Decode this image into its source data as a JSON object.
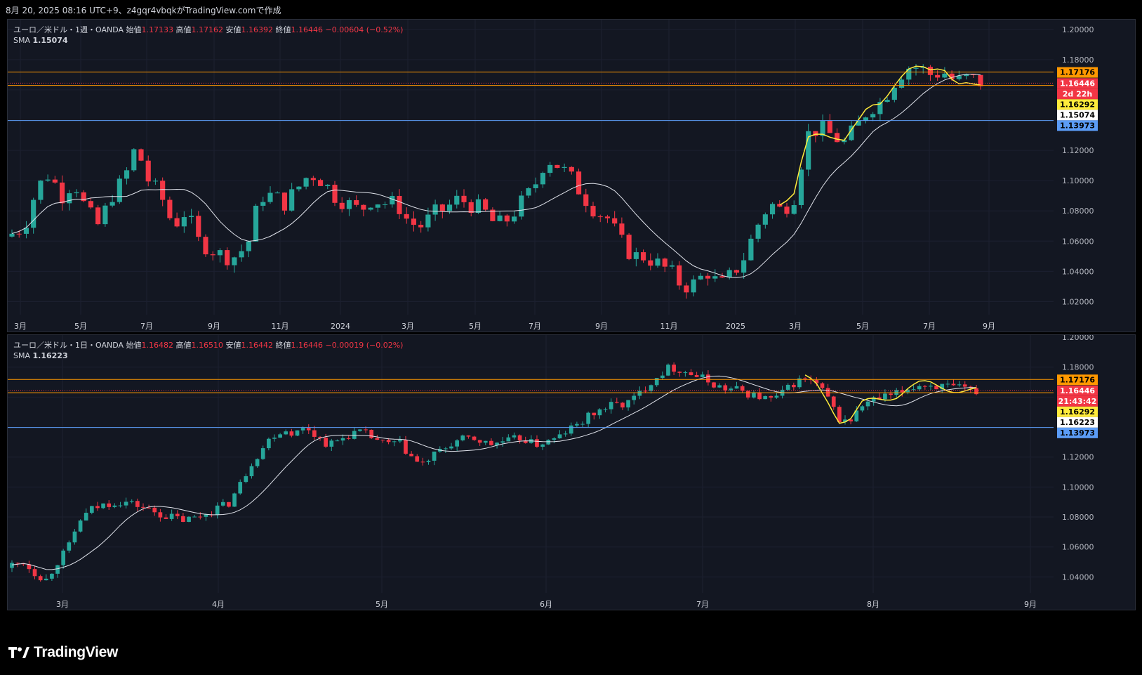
{
  "header": {
    "caption": "8月 20, 2025 08:16 UTC+9、z4gqr4vbqkがTradingView.comで作成"
  },
  "brand": {
    "name": "TradingView",
    "icon": "tradingview-logo-icon"
  },
  "colors": {
    "up": "#26a69a",
    "down": "#f23645",
    "sma": "#e0e3eb",
    "hand": "#ffeb3b",
    "orange": "#ff9800",
    "blue": "#5b9cf6",
    "bg": "#131722"
  },
  "panes": [
    {
      "id": "weekly",
      "legend": {
        "symbol": "ユーロ／米ドル・1週・OANDA",
        "open_label": "始値",
        "open": "1.17133",
        "high_label": "高値",
        "high": "1.17162",
        "low_label": "安値",
        "low": "1.16392",
        "close_label": "終値",
        "close": "1.16446",
        "change": "−0.00604 (−0.52%)"
      },
      "sma": {
        "label": "SMA",
        "value": "1.15074"
      },
      "y_ticks": [
        "1.20000",
        "1.18000",
        "1.12000",
        "1.10000",
        "1.08000",
        "1.06000",
        "1.04000",
        "1.02000"
      ],
      "price_tags": [
        {
          "text": "1.17176",
          "bg": "#ff9800",
          "fg": "#000000"
        },
        {
          "text": "1.16446",
          "bg": "#f23645",
          "fg": "#ffffff"
        },
        {
          "text": "2d 22h",
          "bg": "#f23645",
          "fg": "#ffffff"
        },
        {
          "text": "1.16292",
          "bg": "#ffeb3b",
          "fg": "#000000"
        },
        {
          "text": "1.15074",
          "bg": "#ffffff",
          "fg": "#000000"
        },
        {
          "text": "1.13973",
          "bg": "#5b9cf6",
          "fg": "#000000"
        }
      ],
      "x_labels": [
        "3月",
        "5月",
        "7月",
        "9月",
        "11月",
        "2024",
        "3月",
        "5月",
        "7月",
        "9月",
        "11月",
        "2025",
        "3月",
        "5月",
        "7月",
        "9月"
      ]
    },
    {
      "id": "daily",
      "legend": {
        "symbol": "ユーロ／米ドル・1日・OANDA",
        "open_label": "始値",
        "open": "1.16482",
        "high_label": "高値",
        "high": "1.16510",
        "low_label": "安値",
        "low": "1.16442",
        "close_label": "終値",
        "close": "1.16446",
        "change": "−0.00019 (−0.02%)"
      },
      "sma": {
        "label": "SMA",
        "value": "1.16223"
      },
      "y_ticks": [
        "1.20000",
        "1.18000",
        "1.12000",
        "1.10000",
        "1.08000",
        "1.06000",
        "1.04000"
      ],
      "price_tags": [
        {
          "text": "1.17176",
          "bg": "#ff9800",
          "fg": "#000000"
        },
        {
          "text": "1.16446",
          "bg": "#f23645",
          "fg": "#ffffff"
        },
        {
          "text": "21:43:42",
          "bg": "#f23645",
          "fg": "#ffffff"
        },
        {
          "text": "1.16292",
          "bg": "#ffeb3b",
          "fg": "#000000"
        },
        {
          "text": "1.16223",
          "bg": "#ffffff",
          "fg": "#000000"
        },
        {
          "text": "1.13973",
          "bg": "#5b9cf6",
          "fg": "#000000"
        }
      ],
      "x_labels": [
        "3月",
        "4月",
        "5月",
        "6月",
        "7月",
        "8月",
        "9月"
      ]
    }
  ],
  "chart_data": [
    {
      "type": "candlestick",
      "interval": "1W",
      "symbol": "EURUSD",
      "ylim": [
        1.01,
        1.205
      ],
      "horizontal_levels": [
        1.17176,
        1.16292,
        1.13973
      ],
      "sma_last": 1.15074,
      "close_path": [
        1.065,
        1.07,
        1.095,
        1.105,
        1.09,
        1.1,
        1.08,
        1.07,
        1.09,
        1.1,
        1.123,
        1.1,
        1.09,
        1.07,
        1.08,
        1.06,
        1.055,
        1.05,
        1.05,
        1.058,
        1.09,
        1.09,
        1.085,
        1.095,
        1.105,
        1.1,
        1.09,
        1.085,
        1.08,
        1.088,
        1.085,
        1.085,
        1.072,
        1.07,
        1.078,
        1.082,
        1.088,
        1.084,
        1.08,
        1.07,
        1.075,
        1.085,
        1.095,
        1.115,
        1.11,
        1.102,
        1.09,
        1.08,
        1.075,
        1.06,
        1.05,
        1.05,
        1.045,
        1.04,
        1.03,
        1.032,
        1.04,
        1.03,
        1.038,
        1.05,
        1.07,
        1.085,
        1.08,
        1.09,
        1.13,
        1.135,
        1.13,
        1.125,
        1.135,
        1.148,
        1.152,
        1.165,
        1.175,
        1.175,
        1.17,
        1.172,
        1.165,
        1.168,
        1.165
      ]
    },
    {
      "type": "candlestick",
      "interval": "1D",
      "symbol": "EURUSD",
      "ylim": [
        1.028,
        1.2
      ],
      "horizontal_levels": [
        1.17176,
        1.16292,
        1.13973
      ],
      "sma_last": 1.16223,
      "close_path": [
        1.048,
        1.05,
        1.043,
        1.038,
        1.05,
        1.06,
        1.078,
        1.085,
        1.088,
        1.09,
        1.09,
        1.088,
        1.085,
        1.082,
        1.08,
        1.078,
        1.079,
        1.082,
        1.086,
        1.088,
        1.1,
        1.115,
        1.125,
        1.135,
        1.138,
        1.136,
        1.14,
        1.133,
        1.128,
        1.132,
        1.136,
        1.136,
        1.132,
        1.128,
        1.13,
        1.122,
        1.114,
        1.12,
        1.125,
        1.13,
        1.132,
        1.132,
        1.128,
        1.13,
        1.131,
        1.133,
        1.128,
        1.13,
        1.132,
        1.138,
        1.142,
        1.148,
        1.152,
        1.155,
        1.155,
        1.16,
        1.168,
        1.175,
        1.18,
        1.178,
        1.175,
        1.172,
        1.168,
        1.165,
        1.165,
        1.162,
        1.16,
        1.158,
        1.163,
        1.17,
        1.172,
        1.168,
        1.158,
        1.144,
        1.145,
        1.155,
        1.158,
        1.16,
        1.162,
        1.166,
        1.168,
        1.168,
        1.167,
        1.166,
        1.165,
        1.164
      ]
    }
  ]
}
